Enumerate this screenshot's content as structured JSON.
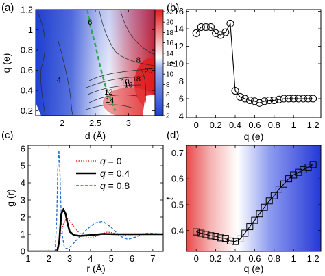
{
  "chart_data": [
    {
      "panel": "(a)",
      "type": "heatmap",
      "xlabel": "d (Å)",
      "ylabel": "q (e)",
      "xlim": [
        1.6,
        3.4
      ],
      "ylim": [
        0.15,
        1.2
      ],
      "xticks": [
        "2",
        "2.5",
        "3"
      ],
      "xtick_values": [
        2.0,
        2.5,
        3.0
      ],
      "yticks": [
        "0.2",
        "0.4",
        "0.6",
        "0.8",
        "1",
        "1.2"
      ],
      "ytick_values": [
        0.2,
        0.4,
        0.6,
        0.8,
        1.0,
        1.2
      ],
      "colorbar": {
        "ticks": [
          "2",
          "4",
          "6",
          "8",
          "10",
          "12",
          "14",
          "16",
          "18",
          "20",
          "22"
        ],
        "tick_values": [
          2,
          4,
          6,
          8,
          10,
          12,
          14,
          16,
          18,
          20,
          22
        ],
        "range": [
          2,
          22
        ],
        "colors": [
          "#1f3fd0",
          "#ffffff",
          "#e01d1d"
        ]
      },
      "contour_labels": [
        "6",
        "8",
        "4",
        "10",
        "20",
        "18",
        "16",
        "12",
        "14"
      ],
      "contour_label_positions": [
        [
          2.42,
          1.05
        ],
        [
          3.15,
          0.68
        ],
        [
          1.95,
          0.48
        ],
        [
          2.95,
          0.46
        ],
        [
          3.3,
          0.57
        ],
        [
          3.12,
          0.49
        ],
        [
          3.0,
          0.43
        ],
        [
          2.7,
          0.36
        ],
        [
          2.72,
          0.28
        ]
      ],
      "dashed_curve": [
        [
          2.38,
          1.2
        ],
        [
          2.42,
          1.05
        ],
        [
          2.5,
          0.85
        ],
        [
          2.58,
          0.62
        ],
        [
          2.65,
          0.45
        ],
        [
          2.73,
          0.32
        ],
        [
          2.8,
          0.2
        ]
      ]
    },
    {
      "panel": "(b)",
      "type": "line",
      "xlabel": "q (e)",
      "ylabel": "n",
      "xlim": [
        -0.1,
        1.28
      ],
      "ylim": [
        3.8,
        16.2
      ],
      "xticks": [
        "0",
        "0.2",
        "0.4",
        "0.6",
        "0.8",
        "1",
        "1.2"
      ],
      "xtick_values": [
        0,
        0.2,
        0.4,
        0.6,
        0.8,
        1.0,
        1.2
      ],
      "yticks": [
        "4",
        "6",
        "8",
        "10",
        "12",
        "14",
        "16"
      ],
      "ytick_values": [
        4,
        6,
        8,
        10,
        12,
        14,
        16
      ],
      "x": [
        0,
        0.05,
        0.1,
        0.15,
        0.2,
        0.25,
        0.3,
        0.35,
        0.4,
        0.45,
        0.5,
        0.55,
        0.6,
        0.65,
        0.7,
        0.75,
        0.8,
        0.85,
        0.9,
        0.95,
        1.0,
        1.05,
        1.1,
        1.15,
        1.2
      ],
      "y": [
        13.5,
        14.2,
        14.2,
        14.2,
        13.5,
        13.3,
        13.6,
        14.6,
        6.9,
        6.2,
        6.0,
        5.8,
        5.7,
        5.5,
        5.7,
        5.8,
        5.8,
        5.9,
        6.0,
        6.0,
        6.0,
        6.0,
        6.0,
        6.0,
        6.0
      ]
    },
    {
      "panel": "(c)",
      "type": "line",
      "xlabel": "r (Å)",
      "ylabel": "g (r)",
      "xlim": [
        1,
        7.5
      ],
      "ylim": [
        0,
        6.2
      ],
      "xticks": [
        "1",
        "2",
        "3",
        "4",
        "5",
        "6",
        "7"
      ],
      "xtick_values": [
        1,
        2,
        3,
        4,
        5,
        6,
        7
      ],
      "yticks": [
        "0",
        "1",
        "2",
        "3",
        "4",
        "5",
        "6"
      ],
      "ytick_values": [
        0,
        1,
        2,
        3,
        4,
        5,
        6
      ],
      "legend_position": "top-right",
      "series": [
        {
          "name_prefix": "q",
          "name_suffix": " = 0",
          "color": "#e0301e",
          "style": "dotted",
          "x": [
            1.0,
            2.3,
            2.45,
            2.6,
            2.7,
            2.8,
            2.9,
            3.0,
            3.2,
            3.4,
            3.6,
            3.9,
            4.2,
            4.5,
            4.8,
            5.0,
            5.3,
            5.6,
            6.0,
            6.4,
            6.8,
            7.5
          ],
          "y": [
            0,
            0,
            0.3,
            1.1,
            1.6,
            1.85,
            1.9,
            1.8,
            1.45,
            1.15,
            0.95,
            0.8,
            0.85,
            1.0,
            1.12,
            1.1,
            1.0,
            0.95,
            0.97,
            1.02,
            1.0,
            1.0
          ]
        },
        {
          "name_prefix": "q",
          "name_suffix": " = 0.4",
          "color": "#000000",
          "style": "solid",
          "x": [
            1.0,
            2.4,
            2.5,
            2.55,
            2.6,
            2.7,
            2.8,
            2.9,
            3.0,
            3.2,
            3.5,
            4.0,
            4.6,
            5.2,
            6.0,
            7.5
          ],
          "y": [
            0,
            0,
            0.6,
            1.5,
            2.2,
            2.45,
            2.2,
            1.6,
            1.15,
            0.95,
            0.9,
            0.95,
            1.02,
            1.0,
            1.0,
            1.0
          ]
        },
        {
          "name_prefix": "q",
          "name_suffix": " = 0.8",
          "color": "#1e6fd0",
          "style": "dashed",
          "x": [
            1.0,
            2.3,
            2.38,
            2.43,
            2.48,
            2.52,
            2.58,
            2.65,
            2.75,
            2.9,
            3.1,
            3.4,
            3.8,
            4.2,
            4.6,
            5.0,
            5.4,
            5.8,
            6.2,
            6.6,
            7.0,
            7.5
          ],
          "y": [
            0,
            0,
            2.0,
            4.8,
            5.9,
            5.0,
            2.6,
            0.9,
            0.2,
            0.15,
            0.35,
            0.75,
            1.25,
            1.65,
            1.75,
            1.4,
            0.9,
            0.7,
            0.85,
            1.05,
            1.05,
            1.0
          ]
        }
      ]
    },
    {
      "panel": "(d)",
      "type": "line",
      "xlabel": "q (e)",
      "ylabel": "t",
      "xlim": [
        -0.1,
        1.28
      ],
      "ylim": [
        0.32,
        0.73
      ],
      "xticks": [
        "0",
        "0.2",
        "0.4",
        "0.6",
        "0.8",
        "1",
        "1.2"
      ],
      "xtick_values": [
        0,
        0.2,
        0.4,
        0.6,
        0.8,
        1.0,
        1.2
      ],
      "yticks": [
        "0.4",
        "0.5",
        "0.6",
        "0.7"
      ],
      "ytick_values": [
        0.4,
        0.5,
        0.6,
        0.7
      ],
      "background_gradient": [
        "#e84b4b",
        "#ffffff",
        "#2438d6"
      ],
      "x": [
        0,
        0.05,
        0.1,
        0.15,
        0.2,
        0.25,
        0.3,
        0.35,
        0.4,
        0.45,
        0.5,
        0.55,
        0.6,
        0.65,
        0.7,
        0.75,
        0.8,
        0.85,
        0.9,
        0.95,
        1.0,
        1.05,
        1.1,
        1.15,
        1.2
      ],
      "y": [
        0.395,
        0.39,
        0.385,
        0.38,
        0.378,
        0.372,
        0.37,
        0.36,
        0.358,
        0.368,
        0.39,
        0.415,
        0.44,
        0.465,
        0.49,
        0.515,
        0.535,
        0.56,
        0.58,
        0.6,
        0.615,
        0.625,
        0.635,
        0.645,
        0.655
      ]
    }
  ]
}
